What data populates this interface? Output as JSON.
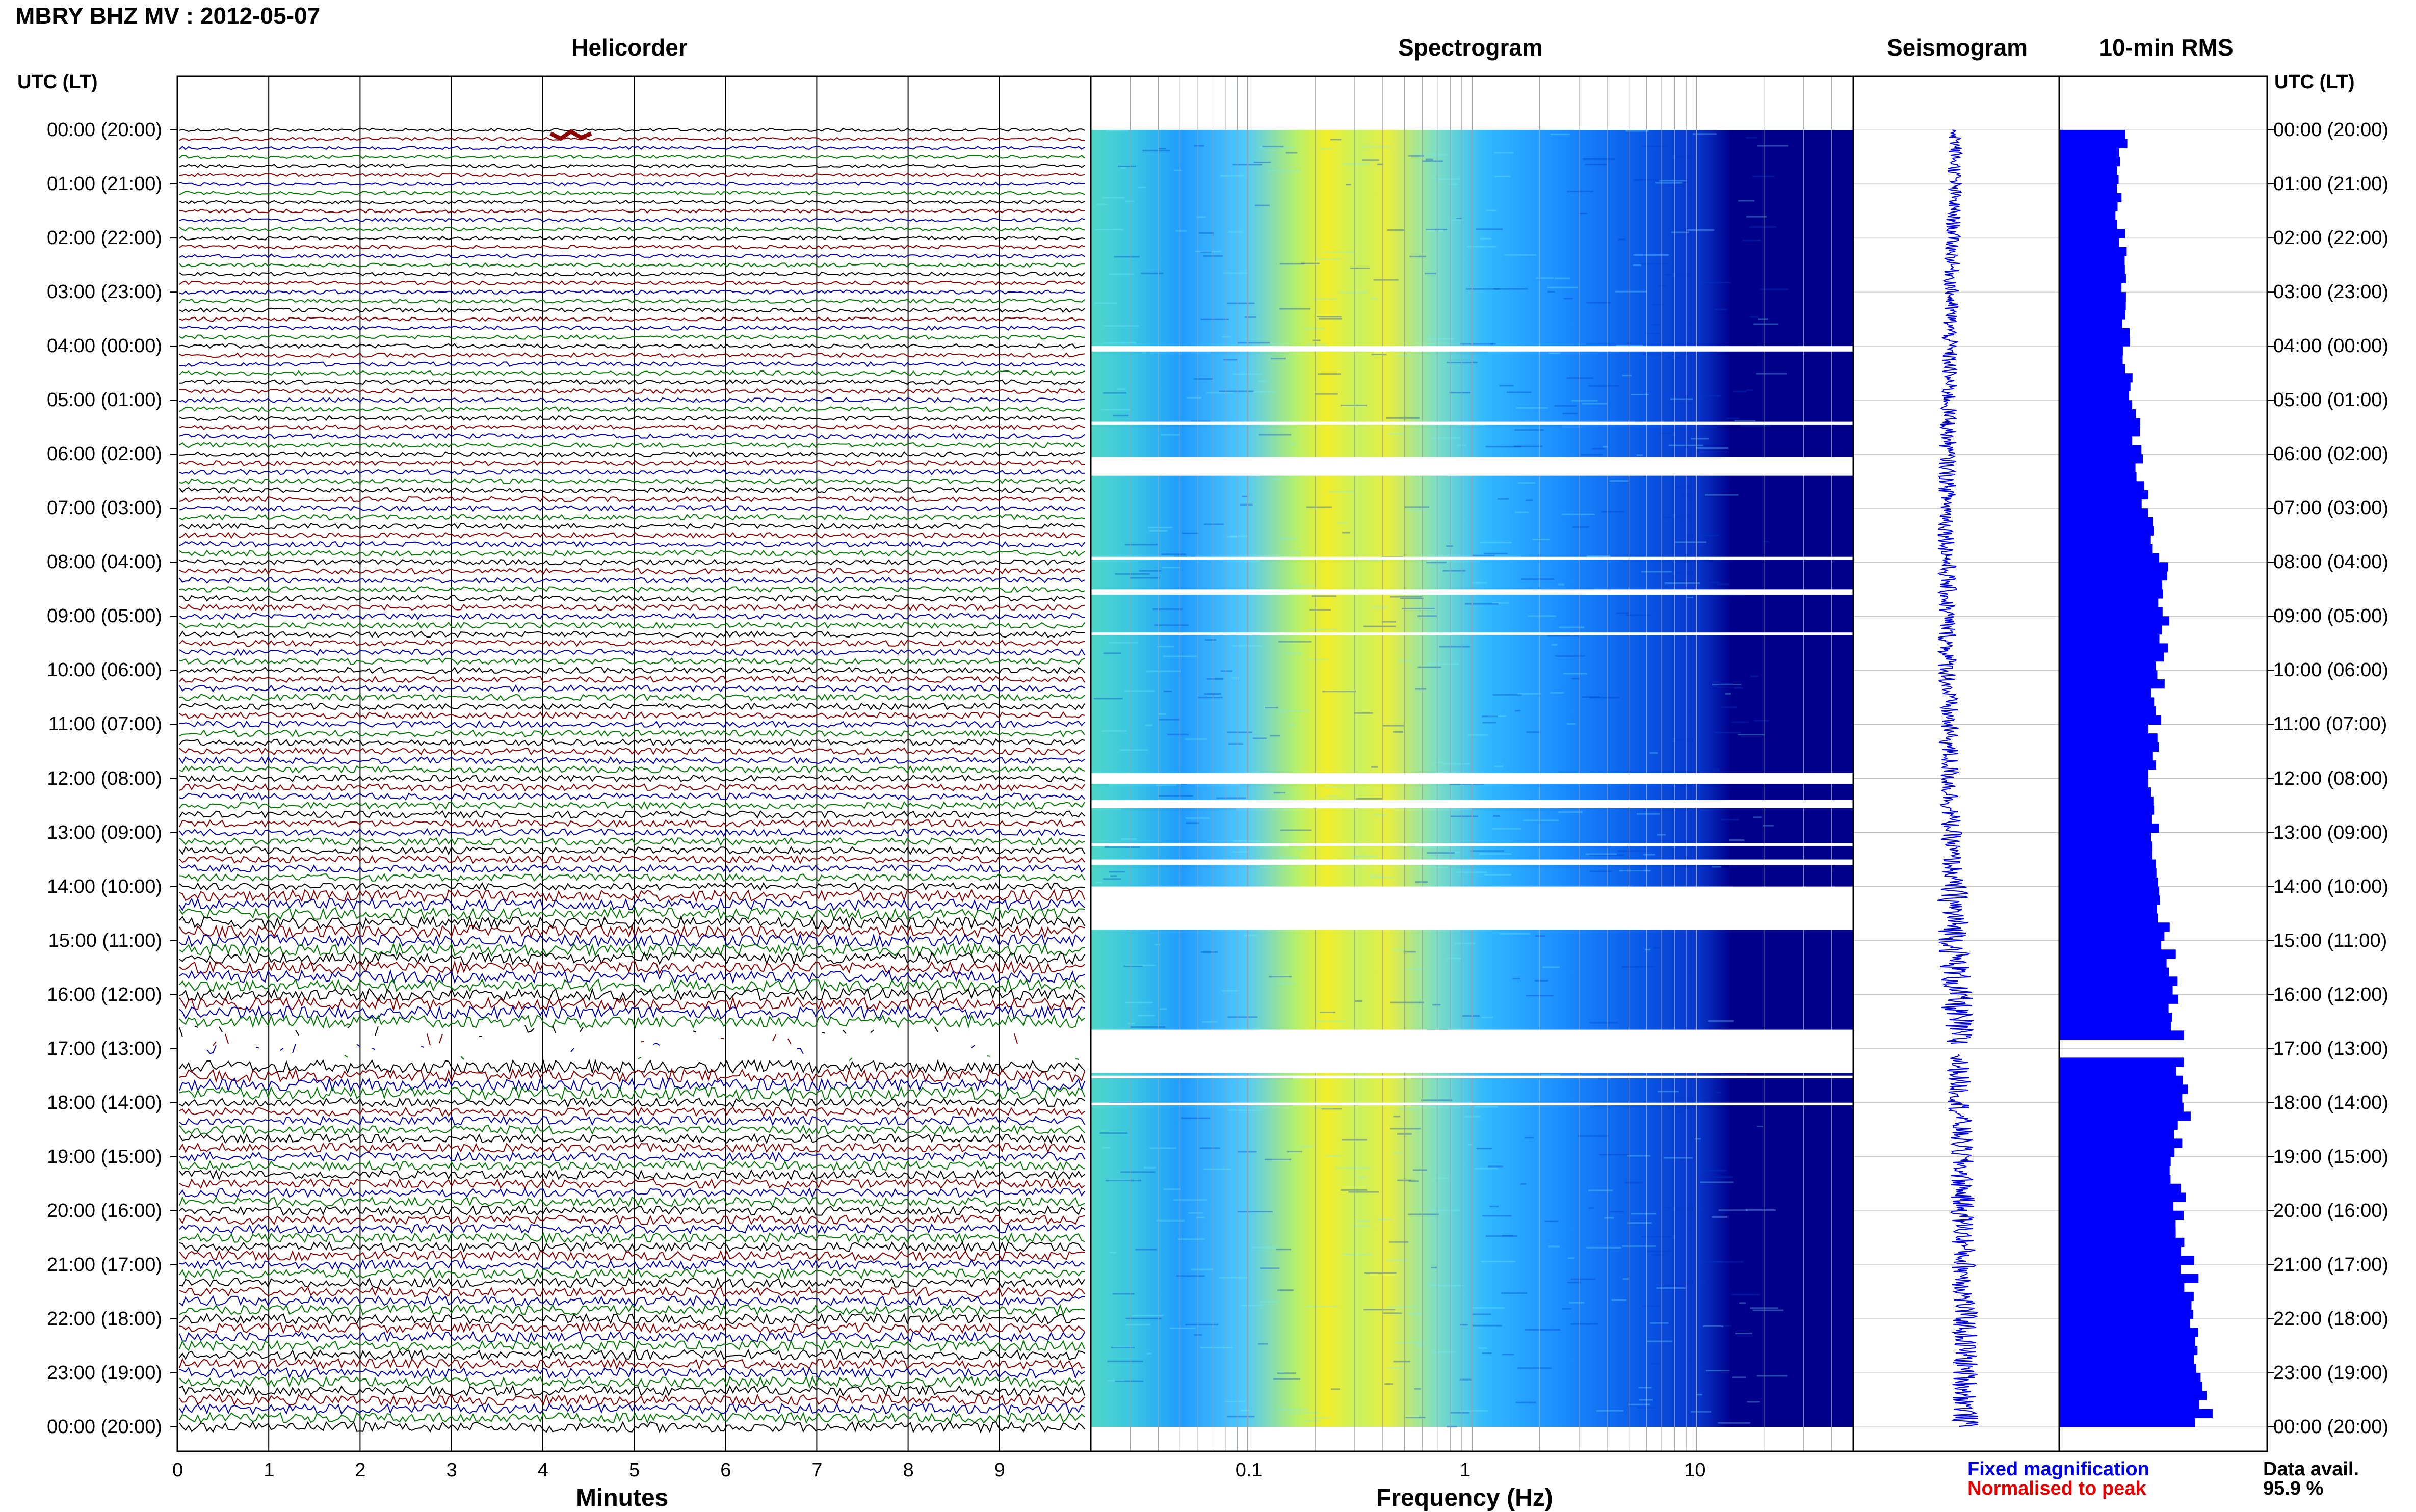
{
  "header": {
    "title": "MBRY BHZ MV : 2012-05-07"
  },
  "panels": {
    "helicorder": "Helicorder",
    "spectrogram": "Spectrogram",
    "seismogram": "Seismogram",
    "rms": "10-min RMS"
  },
  "time_axis": {
    "header_left": "UTC (LT)",
    "header_right": "UTC (LT)",
    "labels": [
      "00:00 (20:00)",
      "01:00 (21:00)",
      "02:00 (22:00)",
      "03:00 (23:00)",
      "04:00 (00:00)",
      "05:00 (01:00)",
      "06:00 (02:00)",
      "07:00 (03:00)",
      "08:00 (04:00)",
      "09:00 (05:00)",
      "10:00 (06:00)",
      "11:00 (07:00)",
      "12:00 (08:00)",
      "13:00 (09:00)",
      "14:00 (10:00)",
      "15:00 (11:00)",
      "16:00 (12:00)",
      "17:00 (13:00)",
      "18:00 (14:00)",
      "19:00 (15:00)",
      "20:00 (16:00)",
      "21:00 (17:00)",
      "22:00 (18:00)",
      "23:00 (19:00)",
      "00:00 (20:00)"
    ]
  },
  "footer": {
    "minutes_label": "Minutes",
    "frequency_label": "Frequency (Hz)",
    "legend_fixed": "Fixed magnification",
    "legend_normalised": "Normalised to peak",
    "avail_label": "Data avail.",
    "avail_value": "95.9 %"
  },
  "colors": {
    "trace_cycle": [
      "#000000",
      "#8b0000",
      "#0000b0",
      "#007a00"
    ],
    "fixed_magnification": "#0000e6",
    "normalised_to_peak": "#e60000",
    "rms_bar": "#0000ff",
    "spectrogram_low": "#00008b",
    "spectrogram_mid": "#00c8ff",
    "spectrogram_high": "#ffff00"
  },
  "chart_data": [
    {
      "type": "line",
      "panel": "helicorder",
      "xlabel": "Minutes",
      "xticks": [
        0,
        1,
        2,
        3,
        4,
        5,
        6,
        7,
        8,
        9
      ],
      "xlim": [
        0,
        10
      ],
      "rows_per_hour": 6,
      "hours": 24,
      "gaps_utc_hours": [
        [
          16.6,
          17.2
        ]
      ]
    },
    {
      "type": "heatmap",
      "panel": "spectrogram",
      "xlabel": "Frequency (Hz)",
      "xscale": "log",
      "xticks": [
        0.1,
        1,
        10
      ],
      "xlim": [
        0.02,
        50
      ],
      "peak_band_hz": [
        0.2,
        0.5
      ],
      "gaps_utc_hours": [
        [
          4.0,
          4.1
        ],
        [
          5.4,
          5.45
        ],
        [
          6.05,
          6.4
        ],
        [
          7.9,
          7.95
        ],
        [
          8.5,
          8.6
        ],
        [
          9.3,
          9.35
        ],
        [
          11.9,
          12.1
        ],
        [
          12.4,
          12.55
        ],
        [
          13.2,
          13.25
        ],
        [
          13.5,
          13.6
        ],
        [
          14.0,
          14.8
        ],
        [
          16.65,
          17.45
        ],
        [
          17.5,
          17.55
        ],
        [
          18.0,
          18.05
        ]
      ]
    },
    {
      "type": "line",
      "panel": "seismogram",
      "xlim": [
        -1,
        1
      ],
      "gaps_utc_hours": [
        [
          16.9,
          17.1
        ]
      ]
    },
    {
      "type": "bar",
      "panel": "rms",
      "orientation": "horizontal",
      "bins": "10-min",
      "hours_x": [
        0,
        1,
        2,
        3,
        4,
        5,
        6,
        7,
        8,
        9,
        10,
        11,
        12,
        13,
        14,
        15,
        16,
        17,
        18,
        19,
        20,
        21,
        22,
        23,
        24
      ],
      "relative_values": [
        0.32,
        0.28,
        0.3,
        0.32,
        0.32,
        0.36,
        0.38,
        0.42,
        0.5,
        0.5,
        0.48,
        0.46,
        0.46,
        0.46,
        0.48,
        0.52,
        0.56,
        0.58,
        0.6,
        0.56,
        0.58,
        0.62,
        0.66,
        0.68,
        0.7
      ],
      "gaps_utc_hours": [
        [
          16.9,
          17.1
        ]
      ]
    }
  ]
}
